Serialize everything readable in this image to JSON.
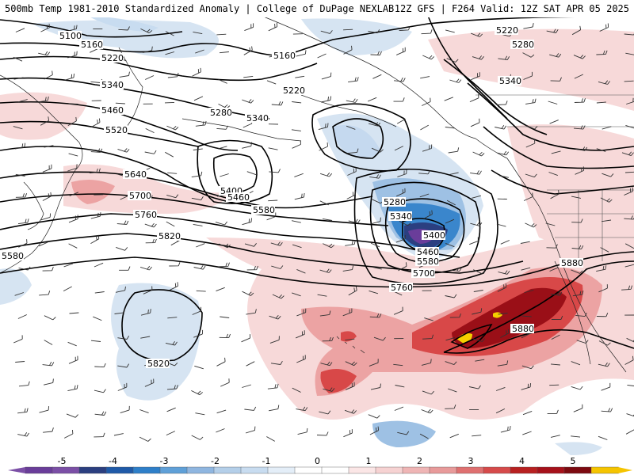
{
  "header": {
    "title_left": "500mb Temp 1981-2010 Standardized Anomaly | College of DuPage NEXLAB",
    "title_right": "12Z GFS | F264 Valid: 12Z SAT APR 05 2025"
  },
  "contour_labels": {
    "l5100": "5100",
    "l5160a": "5160",
    "l5160b": "5160",
    "l5220a": "5220",
    "l5220b": "5220",
    "l5220c": "5220",
    "l5280a": "5280",
    "l5280b": "5280",
    "l5280c": "5280",
    "l5340a": "5340",
    "l5340b": "5340",
    "l5340c": "5340",
    "l5340d": "5340",
    "l5400a": "5400",
    "l5400b": "5400",
    "l5460a": "5460",
    "l5460b": "5460",
    "l5460c": "5460",
    "l5520": "5520",
    "l5580a": "5580",
    "l5580b": "5580",
    "l5580c": "5580",
    "l5640": "5640",
    "l5700a": "5700",
    "l5700b": "5700",
    "l5760a": "5760",
    "l5760b": "5760",
    "l5820a": "5820",
    "l5820b": "5820",
    "l5880a": "5880",
    "l5880b": "5880"
  },
  "colorbar": {
    "ticks": [
      "-5",
      "-4",
      "-3",
      "-2",
      "-1",
      "0",
      "1",
      "2",
      "3",
      "4",
      "5"
    ],
    "colors": [
      "#7b4fa6",
      "#2b3f80",
      "#2e7fc9",
      "#8fb6e0",
      "#c8dcf0",
      "#ffffff",
      "#f6d2d2",
      "#e89a9a",
      "#d64a4a",
      "#a6111a",
      "#f5c400"
    ]
  },
  "legend": {
    "colors": {
      "neg5": "#6a3d9a",
      "neg4": "#2b3f80",
      "neg3": "#3a86cc",
      "neg2": "#9ec1e4",
      "neg1": "#d6e4f2",
      "pos1": "#f7d9d9",
      "pos2": "#eca3a3",
      "pos3": "#d84848",
      "pos4": "#9a0f17",
      "pos5": "#f5d000"
    }
  }
}
